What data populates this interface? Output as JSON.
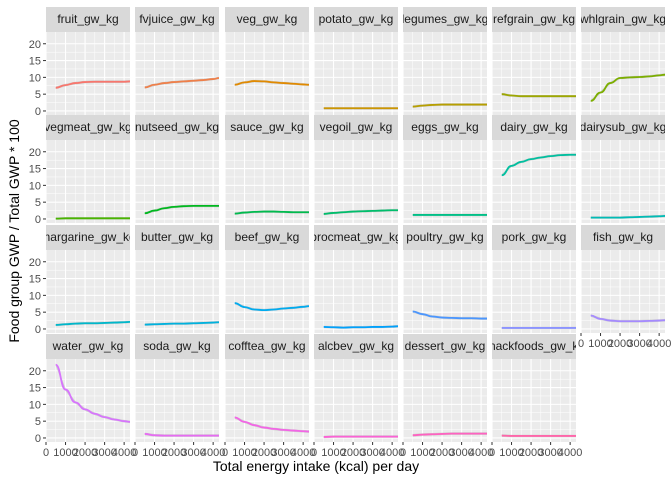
{
  "chart_data": {
    "type": "line",
    "xlabel": "Total energy intake (kcal) per day",
    "ylabel": "Food group GWP / Total GWP * 100",
    "xlim": [
      0,
      4300
    ],
    "ylim": [
      -1.2,
      23.5
    ],
    "x_ticks": [
      0,
      1000,
      2000,
      3000,
      4000
    ],
    "x_tick_labels": [
      "0",
      "1000",
      "2000",
      "3000",
      "4000"
    ],
    "y_ticks": [
      0,
      5,
      10,
      15,
      20
    ],
    "y_tick_labels": [
      "0",
      "5",
      "10",
      "15",
      "20"
    ],
    "grid": true,
    "x": [
      500,
      1000,
      1500,
      2000,
      2500,
      3000,
      3500,
      4000,
      4300
    ],
    "panels": [
      {
        "name": "fruit_gw_kg",
        "color": "#F8766D",
        "values": [
          6.9,
          7.7,
          8.3,
          8.6,
          8.7,
          8.7,
          8.7,
          8.7,
          8.8
        ]
      },
      {
        "name": "fvjuice_gw_kg",
        "color": "#EF7F49",
        "values": [
          7.0,
          7.8,
          8.3,
          8.6,
          8.8,
          9.0,
          9.2,
          9.5,
          9.8
        ]
      },
      {
        "name": "veg_gw_kg",
        "color": "#E18A00",
        "values": [
          7.8,
          8.5,
          8.9,
          8.8,
          8.5,
          8.3,
          8.1,
          7.9,
          7.8
        ]
      },
      {
        "name": "potato_gw_kg",
        "color": "#CD9600",
        "values": [
          0.8,
          0.8,
          0.8,
          0.8,
          0.8,
          0.8,
          0.8,
          0.8,
          0.8
        ]
      },
      {
        "name": "legumes_gw_kg",
        "color": "#B79F00",
        "values": [
          1.3,
          1.6,
          1.8,
          1.9,
          1.9,
          1.9,
          1.9,
          1.9,
          1.9
        ]
      },
      {
        "name": "refgrain_gw_kg",
        "color": "#9DA700",
        "values": [
          5.0,
          4.6,
          4.4,
          4.4,
          4.4,
          4.4,
          4.4,
          4.4,
          4.4
        ]
      },
      {
        "name": "whlgrain_gw_kg",
        "color": "#7CAE00",
        "values": [
          3.0,
          5.5,
          8.3,
          9.8,
          10.0,
          10.1,
          10.3,
          10.6,
          10.8
        ]
      },
      {
        "name": "vegmeat_gw_kg",
        "color": "#49B500",
        "values": [
          0.1,
          0.2,
          0.2,
          0.2,
          0.2,
          0.2,
          0.2,
          0.2,
          0.2
        ]
      },
      {
        "name": "nutseed_gw_kg",
        "color": "#00B81F",
        "values": [
          1.7,
          2.5,
          3.2,
          3.6,
          3.8,
          3.9,
          3.9,
          3.9,
          3.9
        ]
      },
      {
        "name": "sauce_gw_kg",
        "color": "#00BB4E",
        "values": [
          1.6,
          1.9,
          2.1,
          2.2,
          2.2,
          2.1,
          2.0,
          2.0,
          2.0
        ]
      },
      {
        "name": "vegoil_gw_kg",
        "color": "#00BE6C",
        "values": [
          1.5,
          1.8,
          2.0,
          2.2,
          2.3,
          2.4,
          2.5,
          2.6,
          2.6
        ]
      },
      {
        "name": "eggs_gw_kg",
        "color": "#00C087",
        "values": [
          1.2,
          1.2,
          1.2,
          1.2,
          1.2,
          1.2,
          1.2,
          1.2,
          1.2
        ]
      },
      {
        "name": "dairy_gw_kg",
        "color": "#00BF9F",
        "values": [
          13.0,
          15.8,
          17.0,
          17.8,
          18.3,
          18.7,
          19.0,
          19.1,
          19.1
        ]
      },
      {
        "name": "dairysub_gw_kg",
        "color": "#00BCB6",
        "values": [
          0.4,
          0.4,
          0.4,
          0.4,
          0.5,
          0.6,
          0.7,
          0.8,
          0.9
        ]
      },
      {
        "name": "margarine_gw_kg",
        "color": "#00B8CB",
        "values": [
          1.2,
          1.4,
          1.6,
          1.7,
          1.7,
          1.8,
          1.9,
          2.0,
          2.1
        ]
      },
      {
        "name": "butter_gw_kg",
        "color": "#00B2DE",
        "values": [
          1.3,
          1.4,
          1.5,
          1.6,
          1.6,
          1.7,
          1.8,
          1.9,
          2.0
        ]
      },
      {
        "name": "beef_gw_kg",
        "color": "#00ABEF",
        "values": [
          7.7,
          6.5,
          5.8,
          5.6,
          5.8,
          6.1,
          6.3,
          6.6,
          6.8
        ]
      },
      {
        "name": "procmeat_gw_kg",
        "color": "#00A1FC",
        "values": [
          0.6,
          0.5,
          0.4,
          0.5,
          0.5,
          0.6,
          0.6,
          0.7,
          0.8
        ]
      },
      {
        "name": "poultry_gw_kg",
        "color": "#4A96FF",
        "values": [
          5.2,
          4.4,
          3.7,
          3.4,
          3.3,
          3.2,
          3.2,
          3.1,
          3.1
        ]
      },
      {
        "name": "pork_gw_kg",
        "color": "#8B93FF",
        "values": [
          0.3,
          0.3,
          0.3,
          0.3,
          0.3,
          0.3,
          0.3,
          0.3,
          0.3
        ]
      },
      {
        "name": "fish_gw_kg",
        "color": "#A58AFF",
        "values": [
          4.0,
          3.0,
          2.5,
          2.3,
          2.3,
          2.3,
          2.4,
          2.5,
          2.6
        ]
      },
      {
        "name": "water_gw_kg",
        "color": "#D774FD",
        "values": [
          21.8,
          14.4,
          10.6,
          8.5,
          7.2,
          6.2,
          5.5,
          5.0,
          4.8
        ]
      },
      {
        "name": "soda_gw_kg",
        "color": "#E76BF3",
        "values": [
          1.2,
          0.8,
          0.7,
          0.7,
          0.7,
          0.7,
          0.7,
          0.7,
          0.7
        ]
      },
      {
        "name": "cofftea_gw_kg",
        "color": "#F365E6",
        "values": [
          6.1,
          4.8,
          3.8,
          3.1,
          2.7,
          2.4,
          2.2,
          2.0,
          1.9
        ]
      },
      {
        "name": "alcbev_gw_kg",
        "color": "#FC61D5",
        "values": [
          0.3,
          0.4,
          0.4,
          0.4,
          0.4,
          0.4,
          0.4,
          0.4,
          0.4
        ]
      },
      {
        "name": "dessert_gw_kg",
        "color": "#FF62C1",
        "values": [
          0.8,
          1.0,
          1.1,
          1.2,
          1.3,
          1.3,
          1.3,
          1.3,
          1.3
        ]
      },
      {
        "name": "snackfoods_gw_kg",
        "color": "#FF66AA",
        "values": [
          0.7,
          0.6,
          0.6,
          0.6,
          0.6,
          0.6,
          0.6,
          0.6,
          0.6
        ]
      }
    ]
  }
}
